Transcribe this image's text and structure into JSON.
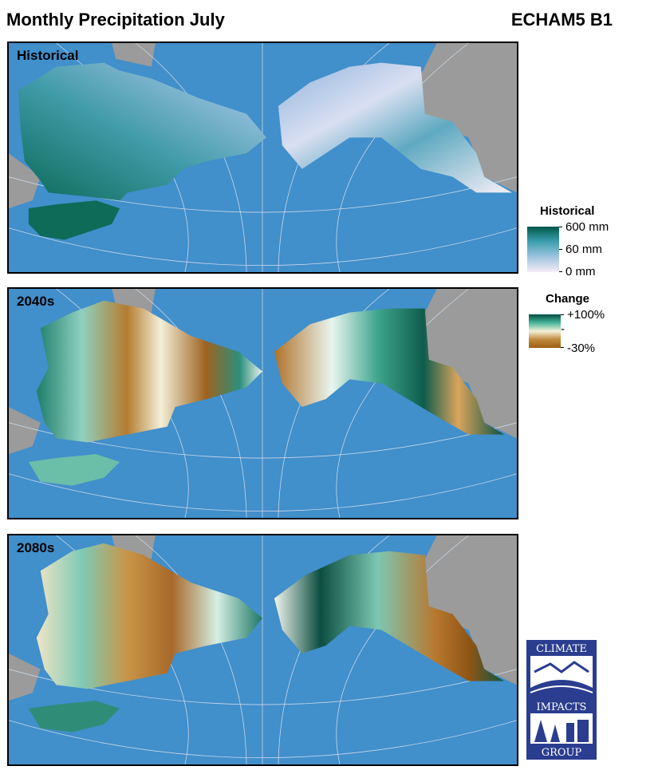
{
  "header": {
    "title": "Monthly Precipitation July",
    "scenario": "ECHAM5 B1"
  },
  "panels": [
    {
      "label": "Historical",
      "kind": "historical"
    },
    {
      "label": "2040s",
      "kind": "change"
    },
    {
      "label": "2080s",
      "kind": "change"
    }
  ],
  "legend_historical": {
    "title": "Historical",
    "labels": [
      "600 mm",
      "60 mm",
      "0 mm"
    ],
    "colors": [
      "#00594a",
      "#3d9fb0",
      "#9fc4e0",
      "#f5ecf7"
    ]
  },
  "legend_change": {
    "title": "Change",
    "labels": [
      "+100%",
      "-",
      "-30%"
    ],
    "colors": [
      "#014d3f",
      "#47b59b",
      "#f4f0d8",
      "#c08a3c",
      "#9e5d14"
    ]
  },
  "colors": {
    "ocean": "#418fcb",
    "land_other": "#9b9b9b",
    "graticule": "#c8d8e8"
  },
  "logo": {
    "top": "CLIMATE",
    "middle": "IMPACTS",
    "bottom": "GROUP",
    "color": "#2b3d8f"
  }
}
